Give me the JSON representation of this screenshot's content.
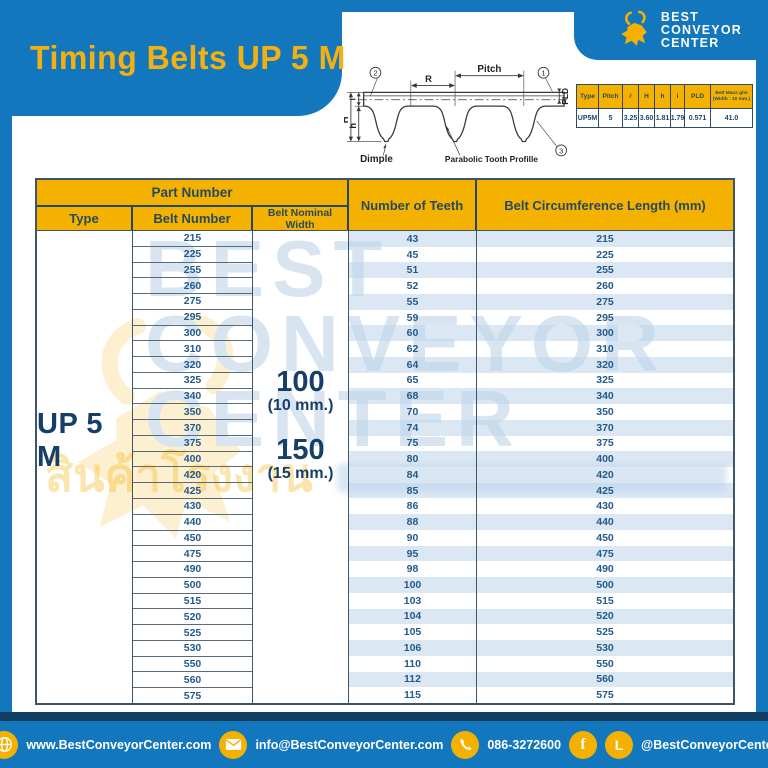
{
  "title": "Timing Belts UP 5 M",
  "logo": {
    "line1": "BEST",
    "line2": "CONVEYOR",
    "line3": "CENTER"
  },
  "diagram": {
    "pitch": "Pitch",
    "r": "R",
    "pld": "PLD",
    "dim_H": "H",
    "dim_h": "h",
    "dim_i": "i",
    "dimple": "Dimple",
    "tooth_profile": "Parabolic Tooth Profille",
    "callout1": "1",
    "callout2": "2",
    "callout3": "3"
  },
  "spec_table": {
    "headers": {
      "type": "Type",
      "pitch": "Pitch",
      "ell": "ℓ",
      "H": "H",
      "h": "h",
      "i": "i",
      "pld": "PLD",
      "mass_line1": "Belt Mass g/m",
      "mass_line2": "(Width : 10 mm.)"
    },
    "values": {
      "type": "UP5M",
      "pitch": "5",
      "ell": "3.25",
      "H": "3.60",
      "h": "1.81",
      "i": "1.79",
      "pld": "0.571",
      "mass": "41.0"
    }
  },
  "main_table": {
    "part_number_header": "Part Number",
    "col_type": "Type",
    "col_belt_number": "Belt Number",
    "col_width": "Belt Nominal Width",
    "col_teeth": "Number of Teeth",
    "col_circumference": "Belt Circumference Length (mm)",
    "type_value": "UP 5 M",
    "widths": [
      {
        "value": "100",
        "unit": "(10 mm.)"
      },
      {
        "value": "150",
        "unit": "(15 mm.)"
      }
    ],
    "rows": [
      {
        "belt": "215",
        "teeth": "43",
        "circ": "215"
      },
      {
        "belt": "225",
        "teeth": "45",
        "circ": "225"
      },
      {
        "belt": "255",
        "teeth": "51",
        "circ": "255"
      },
      {
        "belt": "260",
        "teeth": "52",
        "circ": "260"
      },
      {
        "belt": "275",
        "teeth": "55",
        "circ": "275"
      },
      {
        "belt": "295",
        "teeth": "59",
        "circ": "295"
      },
      {
        "belt": "300",
        "teeth": "60",
        "circ": "300"
      },
      {
        "belt": "310",
        "teeth": "62",
        "circ": "310"
      },
      {
        "belt": "320",
        "teeth": "64",
        "circ": "320"
      },
      {
        "belt": "325",
        "teeth": "65",
        "circ": "325"
      },
      {
        "belt": "340",
        "teeth": "68",
        "circ": "340"
      },
      {
        "belt": "350",
        "teeth": "70",
        "circ": "350"
      },
      {
        "belt": "370",
        "teeth": "74",
        "circ": "370"
      },
      {
        "belt": "375",
        "teeth": "75",
        "circ": "375"
      },
      {
        "belt": "400",
        "teeth": "80",
        "circ": "400"
      },
      {
        "belt": "420",
        "teeth": "84",
        "circ": "420"
      },
      {
        "belt": "425",
        "teeth": "85",
        "circ": "425"
      },
      {
        "belt": "430",
        "teeth": "86",
        "circ": "430"
      },
      {
        "belt": "440",
        "teeth": "88",
        "circ": "440"
      },
      {
        "belt": "450",
        "teeth": "90",
        "circ": "450"
      },
      {
        "belt": "475",
        "teeth": "95",
        "circ": "475"
      },
      {
        "belt": "490",
        "teeth": "98",
        "circ": "490"
      },
      {
        "belt": "500",
        "teeth": "100",
        "circ": "500"
      },
      {
        "belt": "515",
        "teeth": "103",
        "circ": "515"
      },
      {
        "belt": "520",
        "teeth": "104",
        "circ": "520"
      },
      {
        "belt": "525",
        "teeth": "105",
        "circ": "525"
      },
      {
        "belt": "530",
        "teeth": "106",
        "circ": "530"
      },
      {
        "belt": "550",
        "teeth": "110",
        "circ": "550"
      },
      {
        "belt": "560",
        "teeth": "112",
        "circ": "560"
      },
      {
        "belt": "575",
        "teeth": "115",
        "circ": "575"
      }
    ]
  },
  "watermark": {
    "letters": "BEST CONVEYOR",
    "thai_text": "สินค้าโรงงาน"
  },
  "footer": {
    "website": "www.BestConveyorCenter.com",
    "email": "info@BestConveyorCenter.com",
    "phone": "086-3272600",
    "social": "@BestConveyorCenter",
    "facebook_glyph": "f",
    "line_glyph": "L"
  },
  "colors": {
    "blue": "#1377BD",
    "gold": "#F5B100",
    "navy": "#17466E",
    "row_alt": "#E2ECF6"
  }
}
